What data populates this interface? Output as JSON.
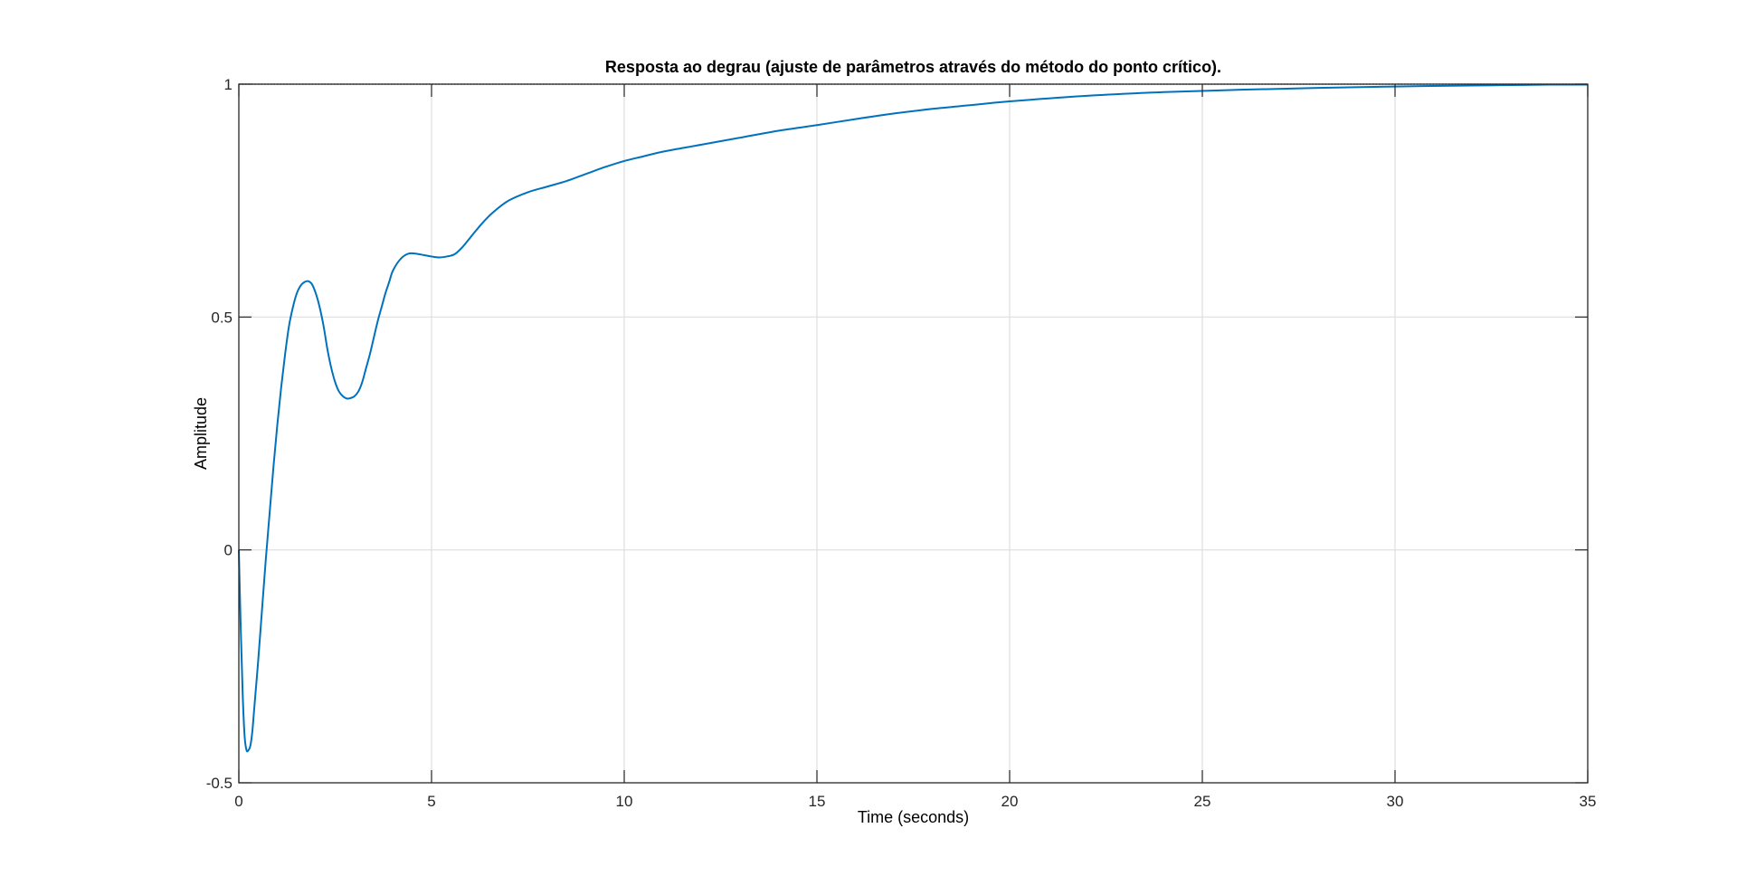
{
  "figure": {
    "background": "#ffffff"
  },
  "chart_data": {
    "type": "line",
    "title": "Resposta ao degrau (ajuste de parâmetros através do método do ponto crítico).",
    "xlabel": "Time (seconds)",
    "ylabel": "Amplitude",
    "xlim": [
      0,
      35
    ],
    "ylim": [
      -0.5,
      1
    ],
    "xticks": [
      0,
      5,
      10,
      15,
      20,
      25,
      30,
      35
    ],
    "xtick_labels": [
      "0",
      "5",
      "10",
      "15",
      "20",
      "25",
      "30",
      "35"
    ],
    "yticks": [
      -0.5,
      0,
      0.5,
      1
    ],
    "ytick_labels": [
      "-0.5",
      "0",
      "0.5",
      "1"
    ],
    "grid": true,
    "reference_line": {
      "y": 1,
      "style": "dotted",
      "color": "#000000"
    },
    "series": [
      {
        "color": "#0072BD",
        "x": [
          0,
          0.05,
          0.1,
          0.15,
          0.2,
          0.25,
          0.3,
          0.35,
          0.4,
          0.5,
          0.6,
          0.7,
          0.8,
          0.9,
          1.0,
          1.1,
          1.2,
          1.3,
          1.4,
          1.5,
          1.6,
          1.7,
          1.8,
          1.9,
          2.0,
          2.1,
          2.2,
          2.3,
          2.4,
          2.5,
          2.6,
          2.7,
          2.8,
          2.9,
          3.0,
          3.1,
          3.2,
          3.3,
          3.4,
          3.5,
          3.6,
          3.7,
          3.8,
          3.9,
          4.0,
          4.2,
          4.4,
          4.6,
          4.8,
          5.0,
          5.2,
          5.4,
          5.6,
          5.8,
          6.0,
          6.3,
          6.6,
          7.0,
          7.5,
          8.0,
          8.5,
          9.0,
          9.5,
          10.0,
          10.5,
          11.0,
          12.0,
          13.0,
          14.0,
          15.0,
          16.0,
          17.0,
          18.0,
          19.0,
          20.0,
          22.0,
          24.0,
          26.0,
          28.0,
          30.0,
          32.0,
          33.0,
          34.0,
          35.0
        ],
        "y": [
          0,
          -0.17,
          -0.31,
          -0.4,
          -0.43,
          -0.43,
          -0.42,
          -0.39,
          -0.34,
          -0.24,
          -0.13,
          -0.02,
          0.08,
          0.18,
          0.27,
          0.35,
          0.42,
          0.48,
          0.52,
          0.55,
          0.567,
          0.575,
          0.577,
          0.57,
          0.55,
          0.52,
          0.48,
          0.43,
          0.39,
          0.36,
          0.34,
          0.33,
          0.325,
          0.326,
          0.33,
          0.34,
          0.36,
          0.39,
          0.42,
          0.455,
          0.49,
          0.52,
          0.55,
          0.575,
          0.6,
          0.625,
          0.636,
          0.636,
          0.633,
          0.63,
          0.628,
          0.63,
          0.635,
          0.65,
          0.67,
          0.7,
          0.725,
          0.75,
          0.768,
          0.78,
          0.792,
          0.807,
          0.822,
          0.835,
          0.845,
          0.855,
          0.87,
          0.885,
          0.9,
          0.912,
          0.925,
          0.937,
          0.947,
          0.955,
          0.963,
          0.975,
          0.983,
          0.988,
          0.992,
          0.995,
          0.997,
          0.998,
          0.999,
          0.999
        ]
      }
    ]
  }
}
